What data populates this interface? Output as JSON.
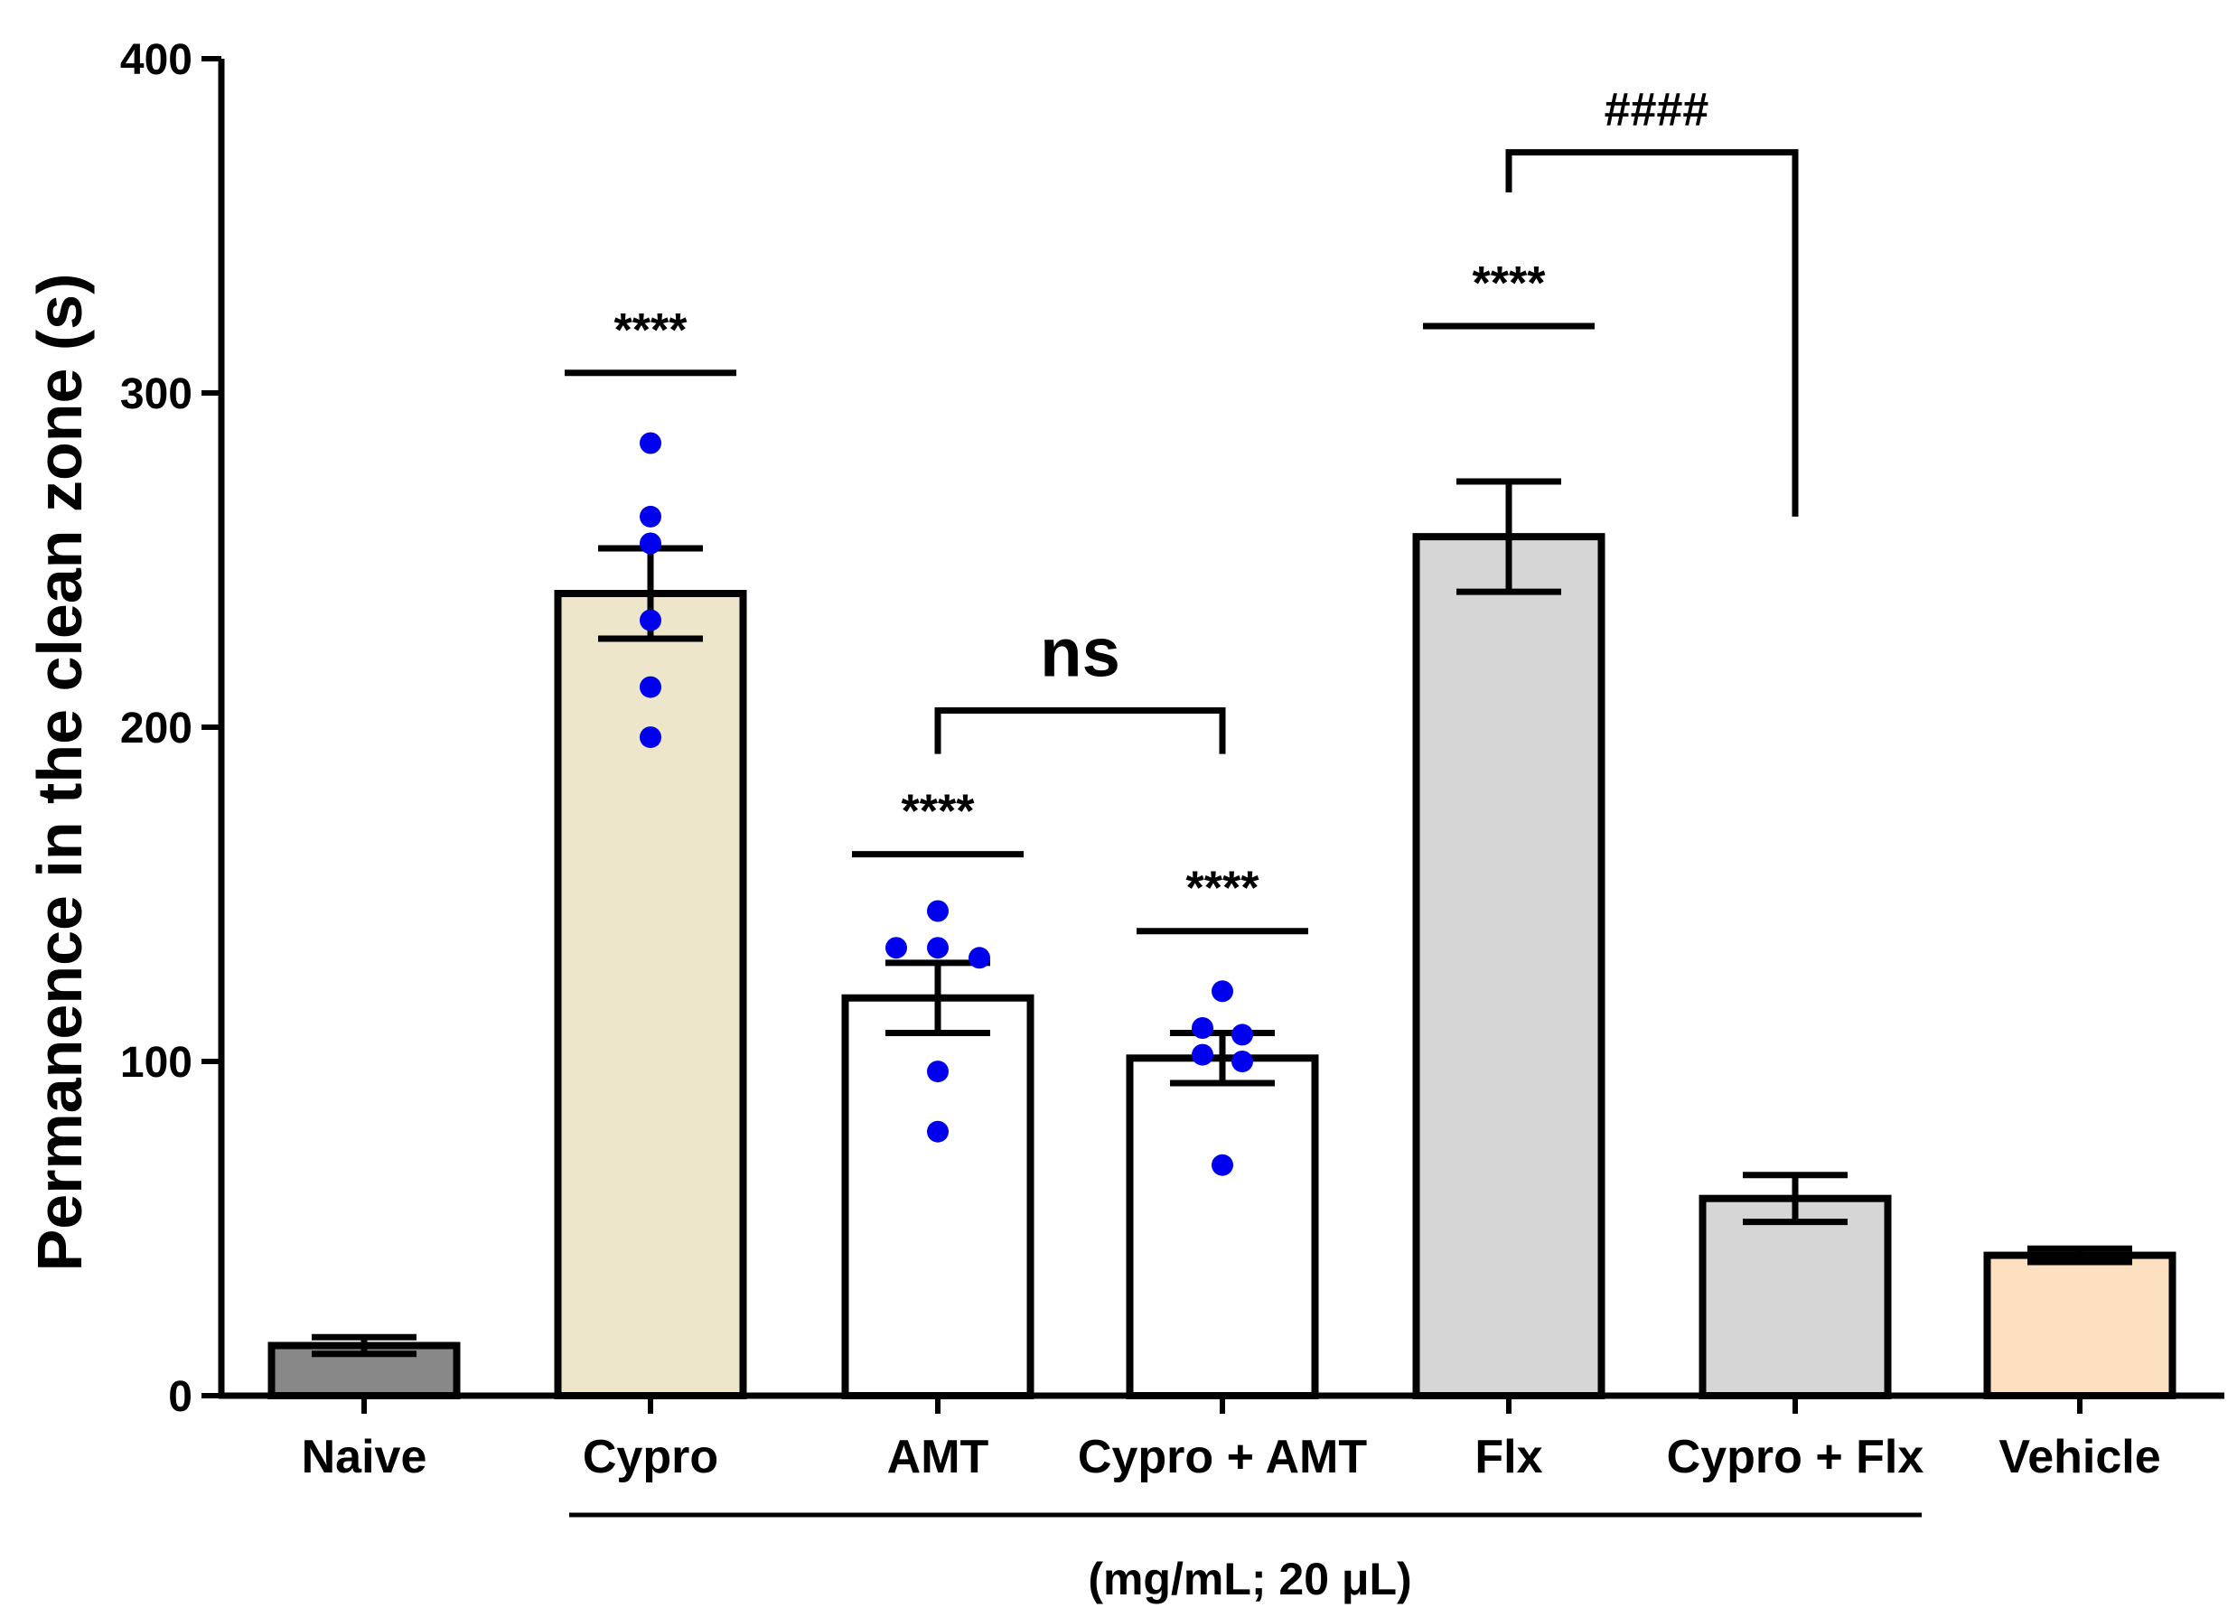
{
  "chart_data": {
    "type": "bar",
    "ylabel": "Permanence in the clean zone (s)",
    "ylim": [
      0,
      400
    ],
    "yticks": [
      0,
      100,
      200,
      300,
      400
    ],
    "categories": [
      "Naive",
      "Cypro",
      "AMT",
      "Cypro + AMT",
      "Flx",
      "Cypro + Flx",
      "Vehicle"
    ],
    "values": [
      15,
      240,
      119,
      101,
      257,
      59,
      42
    ],
    "error": [
      2.5,
      13.5,
      10.5,
      7.5,
      16.5,
      7,
      2
    ],
    "colors": [
      "#888888",
      "#ede6cb",
      "#ffffff",
      "#ffffff",
      "#d6d6d6",
      "#d6d6d6",
      "#fde0c0"
    ],
    "points": [
      [],
      [
        285,
        263,
        255,
        232,
        212,
        197
      ],
      [
        145,
        134,
        134,
        131,
        97,
        79
      ],
      [
        121,
        110,
        108,
        102,
        100,
        69
      ],
      [],
      [],
      []
    ],
    "point_color": "#0000ee",
    "group_note": "(mg/mL; 20 μL)",
    "group_span": [
      1,
      5
    ],
    "significance": [
      {
        "type": "line",
        "cat": 1,
        "y": 306,
        "label": "****"
      },
      {
        "type": "line",
        "cat": 2,
        "y": 162,
        "label": "****"
      },
      {
        "type": "line",
        "cat": 3,
        "y": 139,
        "label": "****"
      },
      {
        "type": "line",
        "cat": 4,
        "y": 320,
        "label": "****"
      },
      {
        "type": "bracket",
        "from": 2,
        "to": 3,
        "y": 205,
        "label": "ns"
      },
      {
        "type": "bracket",
        "from": 4,
        "to": 5,
        "y": 372,
        "label": "####"
      }
    ]
  }
}
